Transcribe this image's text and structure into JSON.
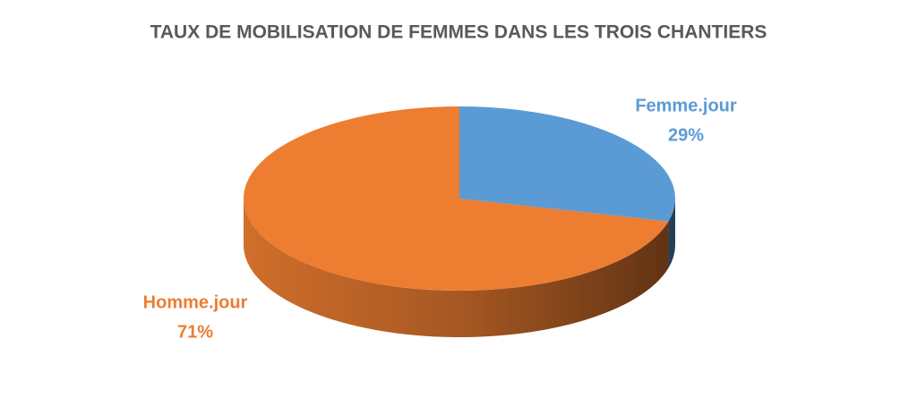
{
  "chart_data": {
    "type": "pie",
    "title": "TAUX DE MOBILISATION DE FEMMES DANS LES TROIS CHANTIERS",
    "categories": [
      "Femme.jour",
      "Homme.jour"
    ],
    "values": [
      29,
      71
    ],
    "value_labels": [
      "29%",
      "71%"
    ],
    "colors": [
      "#5b9bd5",
      "#ed7d31"
    ]
  }
}
